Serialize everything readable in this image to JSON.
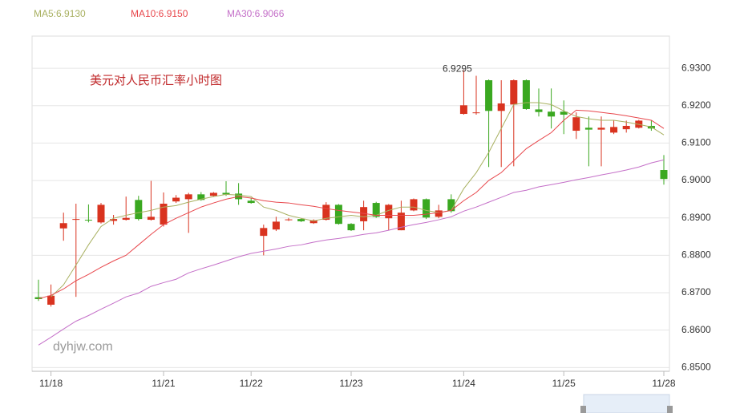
{
  "chart_data": {
    "type": "candlestick",
    "title": "美元对人民币汇率小时图",
    "watermark": "dyhjw.com",
    "categories": [
      null,
      "11/18",
      null,
      null,
      null,
      null,
      null,
      null,
      null,
      null,
      "11/21",
      null,
      null,
      null,
      null,
      null,
      null,
      "11/22",
      null,
      null,
      null,
      null,
      null,
      null,
      null,
      "11/23",
      null,
      null,
      null,
      null,
      null,
      null,
      null,
      null,
      "11/24",
      null,
      null,
      null,
      null,
      null,
      null,
      null,
      "11/25",
      null,
      null,
      null,
      null,
      null,
      null,
      null,
      "11/28"
    ],
    "open": [
      6.8688,
      6.8668,
      6.8872,
      6.8895,
      6.8895,
      6.8888,
      6.8892,
      6.8895,
      6.8948,
      6.8895,
      6.8882,
      6.8944,
      6.895,
      6.8963,
      6.8959,
      6.8967,
      6.8965,
      6.8946,
      6.8852,
      6.8869,
      6.8894,
      6.8897,
      6.8886,
      6.8895,
      6.8935,
      6.8884,
      6.8891,
      6.894,
      6.8899,
      6.8867,
      6.892,
      6.895,
      6.8903,
      6.895,
      6.9178,
      6.918,
      6.9268,
      6.9186,
      6.9203,
      6.9268,
      6.919,
      6.9184,
      6.9184,
      6.9133,
      6.9141,
      6.9136,
      6.9128,
      6.9137,
      6.9141,
      6.9146,
      6.9028
    ],
    "high": [
      6.8735,
      6.8722,
      6.8914,
      6.8938,
      6.8936,
      6.894,
      6.8908,
      6.8957,
      6.8959,
      6.8999,
      6.8968,
      6.8961,
      6.8967,
      6.8969,
      6.8969,
      6.8998,
      6.8993,
      6.8952,
      6.8882,
      6.8903,
      6.89,
      6.8899,
      6.8896,
      6.8942,
      6.8937,
      6.8886,
      6.8946,
      6.8943,
      6.8937,
      6.8946,
      6.8952,
      6.8952,
      6.8935,
      6.8963,
      6.9295,
      6.928,
      6.927,
      6.9268,
      6.927,
      6.927,
      6.9246,
      6.9246,
      6.9214,
      6.9182,
      6.9171,
      6.9171,
      6.916,
      6.916,
      6.9162,
      6.916,
      6.9068
    ],
    "low": [
      6.8678,
      6.8663,
      6.8839,
      6.8689,
      6.8888,
      6.8885,
      6.8882,
      6.8893,
      6.8893,
      6.8893,
      6.8877,
      6.894,
      6.886,
      6.8946,
      6.8957,
      6.8959,
      6.8935,
      6.8938,
      6.88,
      6.8865,
      6.8892,
      6.8889,
      6.8884,
      6.8893,
      6.8882,
      6.8865,
      6.8867,
      6.89,
      6.8867,
      6.8867,
      6.8918,
      6.8897,
      6.8899,
      6.8914,
      6.9176,
      6.9176,
      6.9036,
      6.9036,
      6.9038,
      6.9189,
      6.9171,
      6.9139,
      6.9124,
      6.9111,
      6.9038,
      6.9038,
      6.9124,
      6.9128,
      6.9139,
      6.9133,
      6.8989
    ],
    "close": [
      6.8683,
      6.8692,
      6.8886,
      6.8897,
      6.8893,
      6.8935,
      6.8897,
      6.89,
      6.8897,
      6.8903,
      6.8938,
      6.8954,
      6.8963,
      6.8948,
      6.8967,
      6.8963,
      6.895,
      6.894,
      6.8873,
      6.889,
      6.8896,
      6.8891,
      6.8894,
      6.8935,
      6.8884,
      6.8867,
      6.8929,
      6.8903,
      6.8935,
      6.8914,
      6.895,
      6.8901,
      6.892,
      6.8918,
      6.9201,
      6.9182,
      6.9186,
      6.9206,
      6.9268,
      6.9191,
      6.9183,
      6.9171,
      6.9176,
      6.9169,
      6.9136,
      6.9141,
      6.9143,
      6.9146,
      6.916,
      6.9139,
      6.9004
    ],
    "up_color": "#d9331f",
    "down_color": "#3aa820",
    "series": [
      {
        "name": "MA5:6.9130",
        "color": "#a8b060",
        "values": [
          null,
          6.8689,
          6.8721,
          6.8774,
          6.8828,
          6.8877,
          6.8899,
          6.8907,
          6.8914,
          6.892,
          6.8929,
          6.8933,
          6.8942,
          6.895,
          6.8957,
          6.8963,
          6.8961,
          6.8957,
          6.8929,
          6.892,
          6.8907,
          6.8899,
          6.8892,
          6.8899,
          6.8903,
          6.8907,
          6.8903,
          6.8907,
          6.892,
          6.8929,
          6.8929,
          6.892,
          6.8914,
          6.892,
          6.8978,
          6.9021,
          6.9075,
          6.9139,
          6.9203,
          6.9208,
          6.9208,
          6.9203,
          6.9186,
          6.9171,
          6.9165,
          6.9161,
          6.9161,
          6.9156,
          6.915,
          6.9143,
          6.9122
        ]
      },
      {
        "name": "MA10:6.9150",
        "color": "#e8474c",
        "values": [
          6.8684,
          6.8693,
          6.871,
          6.8732,
          6.8749,
          6.8768,
          6.8785,
          6.88,
          6.8828,
          6.8856,
          6.8882,
          6.8899,
          6.8914,
          6.8929,
          6.894,
          6.895,
          6.8957,
          6.8953,
          6.8946,
          6.8942,
          6.894,
          6.8935,
          6.8931,
          6.8925,
          6.892,
          6.8916,
          6.8912,
          6.8907,
          6.8907,
          6.8907,
          6.8907,
          6.891,
          6.8914,
          6.892,
          6.8946,
          6.8968,
          6.9,
          6.9021,
          6.9053,
          6.9085,
          6.9107,
          6.9128,
          6.9161,
          6.9188,
          6.9186,
          6.9182,
          6.9178,
          6.9173,
          6.9167,
          6.9161,
          6.9139
        ]
      },
      {
        "name": "MA30:6.9066",
        "color": "#c46fc8",
        "values": [
          6.856,
          6.8581,
          6.8603,
          6.8624,
          6.8639,
          6.8656,
          6.8672,
          6.8689,
          6.8699,
          6.8717,
          6.8727,
          6.8736,
          6.8753,
          6.8764,
          6.8774,
          6.8785,
          6.8796,
          6.8805,
          6.8811,
          6.8817,
          6.8824,
          6.8828,
          6.8835,
          6.8841,
          6.8845,
          6.885,
          6.8856,
          6.886,
          6.8867,
          6.8875,
          6.8882,
          6.8888,
          6.8895,
          6.8903,
          6.8918,
          6.8929,
          6.8942,
          6.8955,
          6.8968,
          6.8974,
          6.8983,
          6.8989,
          6.8995,
          6.9002,
          6.9008,
          6.9015,
          6.9021,
          6.9028,
          6.9036,
          6.9047,
          6.9055
        ]
      }
    ],
    "annotations": [
      {
        "label": "6.9295",
        "value": 6.9295
      }
    ],
    "ylim": [
      6.849,
      6.9386
    ],
    "yticks": [
      {
        "value": 6.85,
        "label": "6.8500"
      },
      {
        "value": 6.86,
        "label": "6.8600"
      },
      {
        "value": 6.87,
        "label": "6.8700"
      },
      {
        "value": 6.88,
        "label": "6.8800"
      },
      {
        "value": 6.89,
        "label": "6.8900"
      },
      {
        "value": 6.9,
        "label": "6.9000"
      },
      {
        "value": 6.91,
        "label": "6.9100"
      },
      {
        "value": 6.92,
        "label": "6.9200"
      },
      {
        "value": 6.93,
        "label": "6.9300"
      }
    ],
    "grid": true
  }
}
